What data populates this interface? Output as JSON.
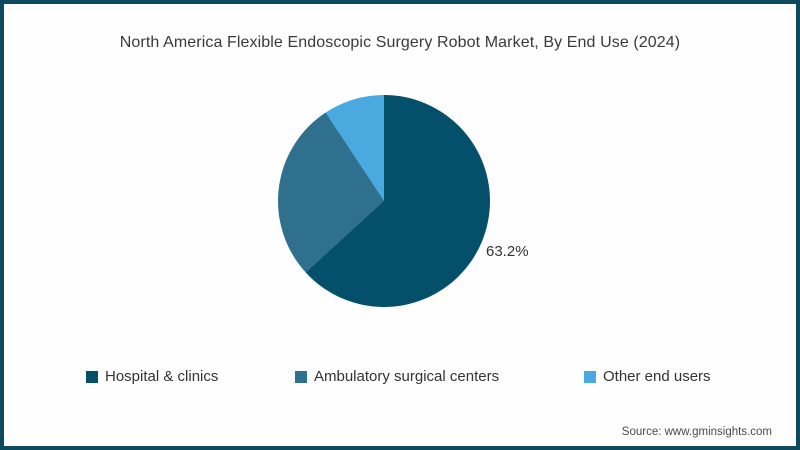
{
  "header": {
    "title": "North America Flexible Endoscopic Surgery Robot Market, By End Use (2024)"
  },
  "chart_data": {
    "type": "pie",
    "title": "North America Flexible Endoscopic Surgery Robot Market, By End Use (2024)",
    "categories": [
      "Hospital & clinics",
      "Ambulatory surgical centers",
      "Other end users"
    ],
    "values": [
      63.2,
      27.5,
      9.3
    ],
    "colors": [
      "#04506b",
      "#30708f",
      "#4aa9de"
    ],
    "start_angle_deg": 0,
    "direction": "clockwise",
    "data_labels": [
      {
        "category": "Hospital & clinics",
        "text": "63.2%"
      }
    ],
    "legend_position": "bottom",
    "labeled_value_only": "63.2%"
  },
  "pie": {
    "visible_label": "63.2%"
  },
  "legend": {
    "items": [
      {
        "label": "Hospital & clinics",
        "color": "#04506b"
      },
      {
        "label": "Ambulatory surgical centers",
        "color": "#30708f"
      },
      {
        "label": "Other end users",
        "color": "#4aa9de"
      }
    ]
  },
  "footer": {
    "source": "Source: www.gminsights.com"
  },
  "colors": {
    "frame_border": "#0e4a5e",
    "background": "#fefefe",
    "title_text": "#3a3a3a",
    "label_text": "#333333",
    "slice_hospital": "#04506b",
    "slice_ambulatory": "#30708f",
    "slice_other": "#4aa9de"
  }
}
